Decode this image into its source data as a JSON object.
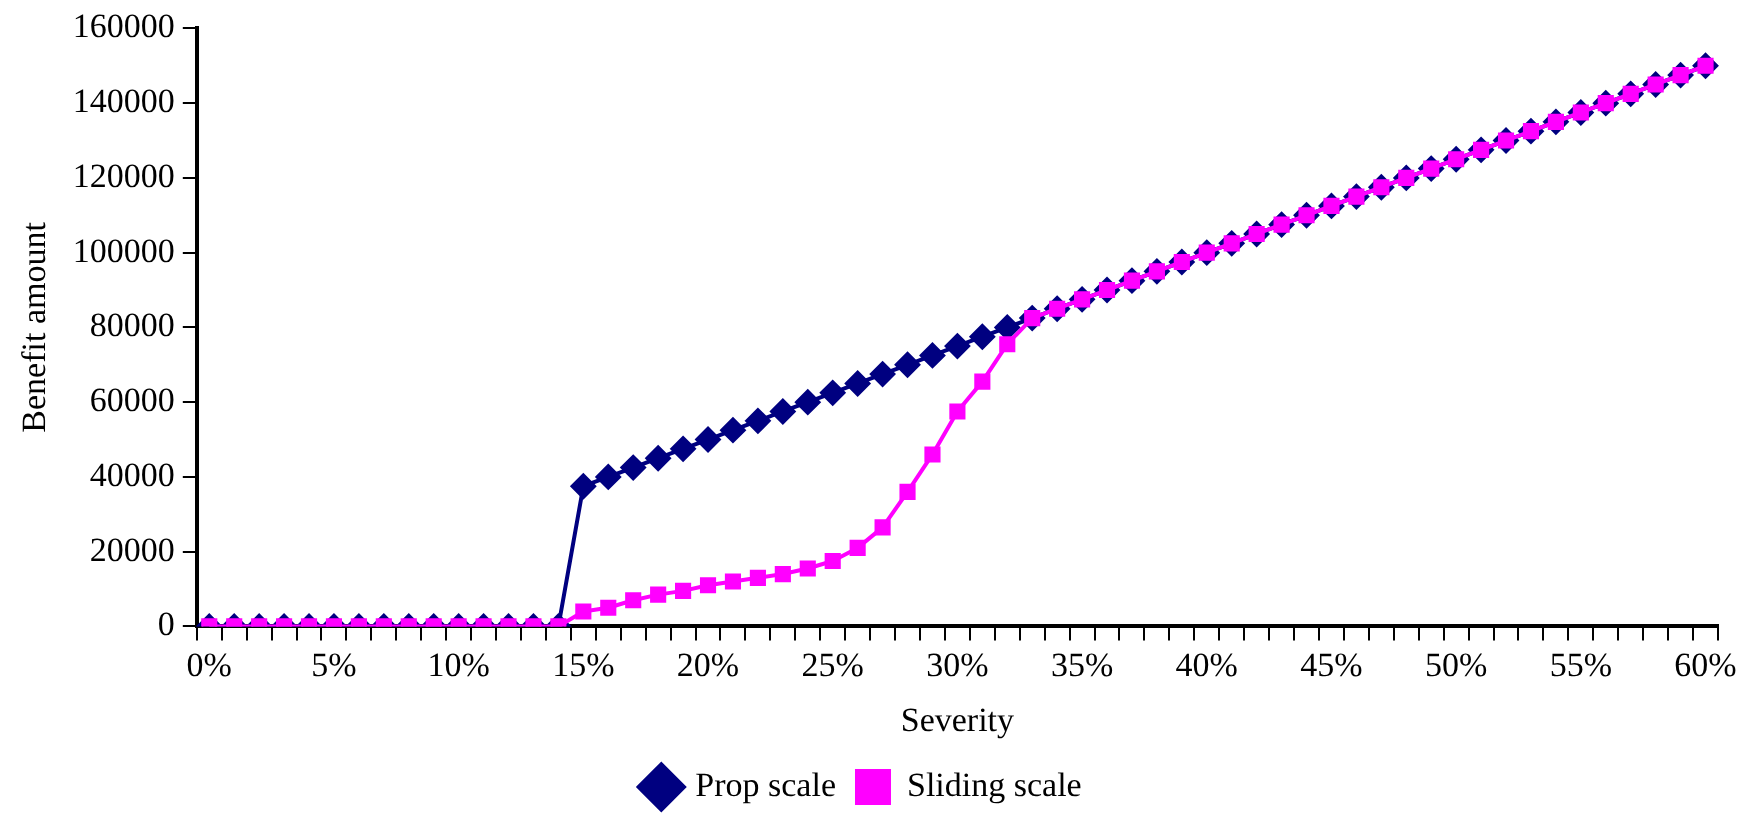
{
  "chart_data": {
    "type": "line",
    "xlabel": "Severity",
    "ylabel": "Benefit amount",
    "categories": [
      "0%",
      null,
      null,
      null,
      null,
      "5%",
      null,
      null,
      null,
      null,
      "10%",
      null,
      null,
      null,
      null,
      "15%",
      null,
      null,
      null,
      null,
      "20%",
      null,
      null,
      null,
      null,
      "25%",
      null,
      null,
      null,
      null,
      "30%",
      null,
      null,
      null,
      null,
      "35%",
      null,
      null,
      null,
      null,
      "40%",
      null,
      null,
      null,
      null,
      "45%",
      null,
      null,
      null,
      null,
      "50%",
      null,
      null,
      null,
      null,
      "55%",
      null,
      null,
      null,
      null,
      "60%"
    ],
    "series": [
      {
        "name": "Prop scale",
        "color": "#000080",
        "marker": "diamond",
        "values": [
          0,
          0,
          0,
          0,
          0,
          0,
          0,
          0,
          0,
          0,
          0,
          0,
          0,
          0,
          0,
          37500,
          40000,
          42500,
          45000,
          47500,
          50000,
          52500,
          55000,
          57500,
          60000,
          62500,
          65000,
          67500,
          70000,
          72500,
          75000,
          77500,
          80000,
          82500,
          85000,
          87500,
          90000,
          92500,
          95000,
          97500,
          100000,
          102500,
          105000,
          107500,
          110000,
          112500,
          115000,
          117500,
          120000,
          122500,
          125000,
          127500,
          130000,
          132500,
          135000,
          137500,
          140000,
          142500,
          145000,
          147500,
          150000
        ]
      },
      {
        "name": "Sliding scale",
        "color": "#ff00ff",
        "marker": "square",
        "values": [
          0,
          0,
          0,
          0,
          0,
          0,
          0,
          0,
          0,
          0,
          0,
          0,
          0,
          0,
          0,
          4000,
          5000,
          7000,
          8500,
          9500,
          11000,
          12000,
          13000,
          14000,
          15500,
          17500,
          21000,
          26500,
          36000,
          46000,
          57500,
          65500,
          75500,
          82500,
          85000,
          87500,
          90000,
          92500,
          95000,
          97500,
          100000,
          102500,
          105000,
          107500,
          110000,
          112500,
          115000,
          117500,
          120000,
          122500,
          125000,
          127500,
          130000,
          132500,
          135000,
          137500,
          140000,
          142500,
          145000,
          147500,
          150000
        ]
      }
    ],
    "ylim": [
      0,
      160000
    ],
    "yticks": [
      0,
      20000,
      40000,
      60000,
      80000,
      100000,
      120000,
      140000,
      160000
    ],
    "grid": false,
    "legend": "bottom",
    "line_style": "solid"
  }
}
